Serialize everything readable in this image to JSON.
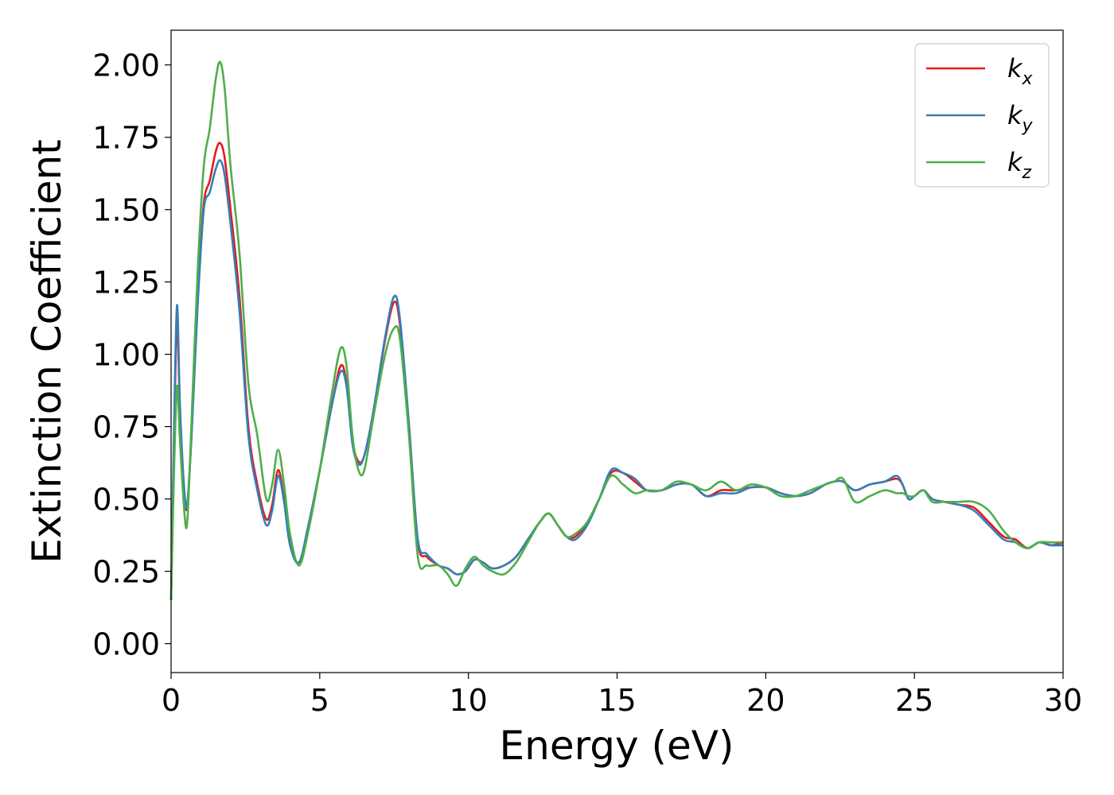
{
  "chart_data": {
    "type": "line",
    "xlabel": "Energy (eV)",
    "ylabel": "Extinction Coefficient",
    "xlim": [
      0,
      30
    ],
    "ylim": [
      -0.1,
      2.12
    ],
    "xticks": [
      0,
      5,
      10,
      15,
      20,
      25,
      30
    ],
    "xtick_labels": [
      "0",
      "5",
      "10",
      "15",
      "20",
      "25",
      "30"
    ],
    "yticks": [
      0,
      0.25,
      0.5,
      0.75,
      1.0,
      1.25,
      1.5,
      1.75,
      2.0
    ],
    "ytick_labels": [
      "0.00",
      "0.25",
      "0.50",
      "0.75",
      "1.00",
      "1.25",
      "1.50",
      "1.75",
      "2.00"
    ],
    "grid": false,
    "legend_position": "top-right",
    "series": [
      {
        "name": "k_x",
        "label_main": "k",
        "label_sub": "x",
        "color": "#e41a1c",
        "x": [
          0,
          0.1,
          0.2,
          0.3,
          0.45,
          0.55,
          0.7,
          0.9,
          1.1,
          1.3,
          1.5,
          1.65,
          1.8,
          2.0,
          2.3,
          2.6,
          2.9,
          3.2,
          3.4,
          3.6,
          3.8,
          4.0,
          4.3,
          4.6,
          5.0,
          5.4,
          5.7,
          5.9,
          6.1,
          6.3,
          6.5,
          6.8,
          7.2,
          7.5,
          7.7,
          8.0,
          8.3,
          8.6,
          9.0,
          9.3,
          9.6,
          9.9,
          10.2,
          10.5,
          10.8,
          11.2,
          11.6,
          12.0,
          12.4,
          12.7,
          13.0,
          13.3,
          13.6,
          14.0,
          14.4,
          14.8,
          15.2,
          15.6,
          16.0,
          16.5,
          17.0,
          17.5,
          18.0,
          18.5,
          19.0,
          19.5,
          20.0,
          20.5,
          21.0,
          21.5,
          22.0,
          22.3,
          22.6,
          23.0,
          23.5,
          24.0,
          24.4,
          24.6,
          24.8,
          25.0,
          25.3,
          25.6,
          26.0,
          26.5,
          27.0,
          27.5,
          28.0,
          28.4,
          28.8,
          29.2,
          29.6,
          30.0
        ],
        "y": [
          0.15,
          0.7,
          1.12,
          0.8,
          0.52,
          0.48,
          0.75,
          1.2,
          1.52,
          1.6,
          1.7,
          1.73,
          1.68,
          1.5,
          1.2,
          0.75,
          0.55,
          0.43,
          0.48,
          0.6,
          0.5,
          0.35,
          0.28,
          0.4,
          0.6,
          0.82,
          0.96,
          0.9,
          0.7,
          0.63,
          0.65,
          0.8,
          1.05,
          1.18,
          1.1,
          0.75,
          0.35,
          0.3,
          0.27,
          0.26,
          0.24,
          0.25,
          0.29,
          0.28,
          0.26,
          0.27,
          0.3,
          0.36,
          0.42,
          0.45,
          0.41,
          0.37,
          0.37,
          0.42,
          0.5,
          0.59,
          0.59,
          0.56,
          0.53,
          0.53,
          0.55,
          0.55,
          0.51,
          0.53,
          0.53,
          0.54,
          0.54,
          0.52,
          0.51,
          0.52,
          0.55,
          0.56,
          0.56,
          0.53,
          0.55,
          0.56,
          0.57,
          0.55,
          0.5,
          0.51,
          0.53,
          0.5,
          0.49,
          0.48,
          0.47,
          0.42,
          0.37,
          0.36,
          0.33,
          0.35,
          0.34,
          0.35
        ]
      },
      {
        "name": "k_y",
        "label_main": "k",
        "label_sub": "y",
        "color": "#377eb8",
        "x": [
          0,
          0.1,
          0.2,
          0.3,
          0.45,
          0.55,
          0.7,
          0.9,
          1.1,
          1.3,
          1.5,
          1.65,
          1.8,
          2.0,
          2.3,
          2.6,
          2.9,
          3.2,
          3.4,
          3.6,
          3.8,
          4.0,
          4.3,
          4.6,
          5.0,
          5.4,
          5.7,
          5.9,
          6.1,
          6.3,
          6.5,
          6.8,
          7.2,
          7.5,
          7.7,
          8.0,
          8.3,
          8.6,
          9.0,
          9.3,
          9.6,
          9.9,
          10.2,
          10.5,
          10.8,
          11.2,
          11.6,
          12.0,
          12.4,
          12.7,
          13.0,
          13.3,
          13.6,
          14.0,
          14.4,
          14.8,
          15.2,
          15.6,
          16.0,
          16.5,
          17.0,
          17.5,
          18.0,
          18.5,
          19.0,
          19.5,
          20.0,
          20.5,
          21.0,
          21.5,
          22.0,
          22.3,
          22.6,
          23.0,
          23.5,
          24.0,
          24.4,
          24.6,
          24.8,
          25.0,
          25.3,
          25.6,
          26.0,
          26.5,
          27.0,
          27.5,
          28.0,
          28.4,
          28.8,
          29.2,
          29.6,
          30.0
        ],
        "y": [
          0.15,
          0.75,
          1.17,
          0.82,
          0.52,
          0.49,
          0.74,
          1.18,
          1.5,
          1.56,
          1.64,
          1.67,
          1.62,
          1.45,
          1.15,
          0.72,
          0.53,
          0.41,
          0.46,
          0.58,
          0.49,
          0.34,
          0.28,
          0.4,
          0.6,
          0.82,
          0.94,
          0.89,
          0.69,
          0.62,
          0.65,
          0.8,
          1.06,
          1.2,
          1.12,
          0.76,
          0.36,
          0.31,
          0.27,
          0.26,
          0.24,
          0.25,
          0.29,
          0.28,
          0.26,
          0.27,
          0.3,
          0.36,
          0.42,
          0.45,
          0.41,
          0.37,
          0.36,
          0.41,
          0.5,
          0.6,
          0.59,
          0.57,
          0.53,
          0.53,
          0.55,
          0.55,
          0.51,
          0.52,
          0.52,
          0.54,
          0.54,
          0.52,
          0.51,
          0.52,
          0.55,
          0.56,
          0.56,
          0.53,
          0.55,
          0.56,
          0.58,
          0.55,
          0.5,
          0.51,
          0.53,
          0.5,
          0.49,
          0.48,
          0.46,
          0.41,
          0.36,
          0.35,
          0.33,
          0.35,
          0.34,
          0.34
        ]
      },
      {
        "name": "k_z",
        "label_main": "k",
        "label_sub": "z",
        "color": "#4daf4a",
        "x": [
          0,
          0.1,
          0.2,
          0.3,
          0.45,
          0.55,
          0.7,
          0.9,
          1.1,
          1.3,
          1.5,
          1.65,
          1.8,
          2.0,
          2.3,
          2.6,
          2.9,
          3.2,
          3.4,
          3.6,
          3.8,
          4.0,
          4.3,
          4.6,
          5.0,
          5.4,
          5.7,
          5.9,
          6.1,
          6.3,
          6.5,
          6.8,
          7.2,
          7.5,
          7.7,
          8.0,
          8.3,
          8.6,
          9.0,
          9.3,
          9.6,
          9.9,
          10.2,
          10.5,
          10.8,
          11.2,
          11.6,
          12.0,
          12.4,
          12.7,
          13.0,
          13.3,
          13.6,
          14.0,
          14.4,
          14.8,
          15.2,
          15.6,
          16.0,
          16.5,
          17.0,
          17.5,
          18.0,
          18.5,
          19.0,
          19.5,
          20.0,
          20.5,
          21.0,
          21.5,
          22.0,
          22.3,
          22.6,
          23.0,
          23.5,
          24.0,
          24.4,
          24.6,
          24.8,
          25.0,
          25.3,
          25.6,
          26.0,
          26.5,
          27.0,
          27.5,
          28.0,
          28.4,
          28.8,
          29.2,
          29.6,
          30.0
        ],
        "y": [
          0.15,
          0.6,
          0.89,
          0.7,
          0.45,
          0.43,
          0.8,
          1.3,
          1.65,
          1.78,
          1.95,
          2.01,
          1.92,
          1.65,
          1.35,
          0.9,
          0.72,
          0.5,
          0.55,
          0.67,
          0.55,
          0.38,
          0.27,
          0.38,
          0.6,
          0.86,
          1.02,
          0.96,
          0.72,
          0.6,
          0.6,
          0.78,
          1.0,
          1.09,
          1.05,
          0.72,
          0.3,
          0.27,
          0.27,
          0.24,
          0.2,
          0.26,
          0.3,
          0.27,
          0.25,
          0.24,
          0.28,
          0.35,
          0.42,
          0.45,
          0.41,
          0.37,
          0.38,
          0.42,
          0.5,
          0.58,
          0.55,
          0.52,
          0.53,
          0.53,
          0.56,
          0.55,
          0.53,
          0.56,
          0.53,
          0.55,
          0.54,
          0.51,
          0.51,
          0.53,
          0.55,
          0.56,
          0.57,
          0.49,
          0.51,
          0.53,
          0.52,
          0.52,
          0.51,
          0.51,
          0.53,
          0.49,
          0.49,
          0.49,
          0.49,
          0.46,
          0.39,
          0.35,
          0.33,
          0.35,
          0.35,
          0.35
        ]
      }
    ]
  }
}
